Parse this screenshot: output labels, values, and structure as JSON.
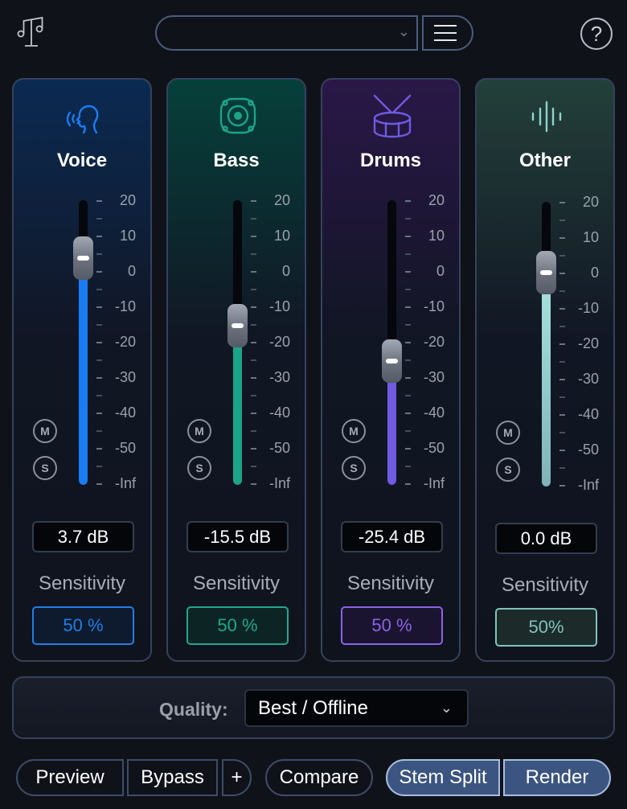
{
  "header": {
    "logo": "music-notes-icon",
    "preset_value": "",
    "preset_chevron": "⌄",
    "help": "?"
  },
  "scale_labels": [
    "20",
    "10",
    "0",
    "-10",
    "-20",
    "-30",
    "-40",
    "-50",
    "-Inf"
  ],
  "stems": [
    {
      "name": "Voice",
      "icon": "voice-head-icon",
      "gain_db": 3.7,
      "gain_text": "3.7 dB",
      "sensitivity_label": "Sensitivity",
      "sensitivity": "50 %",
      "mute": "M",
      "solo": "S",
      "accent": "#1a7cf5",
      "bg_top": "#0b2a52",
      "pct_color": "#1f7fe8",
      "pct_bg": "#0e1a2e"
    },
    {
      "name": "Bass",
      "icon": "speaker-icon",
      "gain_db": -15.5,
      "gain_text": "-15.5 dB",
      "sensitivity_label": "Sensitivity",
      "sensitivity": "50 %",
      "mute": "M",
      "solo": "S",
      "accent": "#1ba487",
      "bg_top": "#06403b",
      "pct_color": "#1fa88d",
      "pct_bg": "#0d2424"
    },
    {
      "name": "Drums",
      "icon": "drum-icon",
      "gain_db": -25.4,
      "gain_text": "-25.4 dB",
      "sensitivity_label": "Sensitivity",
      "sensitivity": "50 %",
      "mute": "M",
      "solo": "S",
      "accent": "#6f5ae0",
      "bg_top": "#2a1748",
      "pct_color": "#8a63e6",
      "pct_bg": "#1b1430"
    },
    {
      "name": "Other",
      "icon": "waveform-icon",
      "gain_db": 0.0,
      "gain_text": "0.0 dB",
      "sensitivity_label": "Sensitivity",
      "sensitivity": "50%",
      "mute": "M",
      "solo": "S",
      "accent": "#8fd3d0",
      "bg_top": "#23403a",
      "pct_color": "#7fc4b8",
      "pct_bg": "#1c2a2a"
    }
  ],
  "quality": {
    "label": "Quality:",
    "value": "Best / Offline",
    "chevron": "⌄"
  },
  "footer": {
    "preview": "Preview",
    "bypass": "Bypass",
    "plus": "+",
    "compare": "Compare",
    "stem_split": "Stem Split",
    "render": "Render"
  }
}
